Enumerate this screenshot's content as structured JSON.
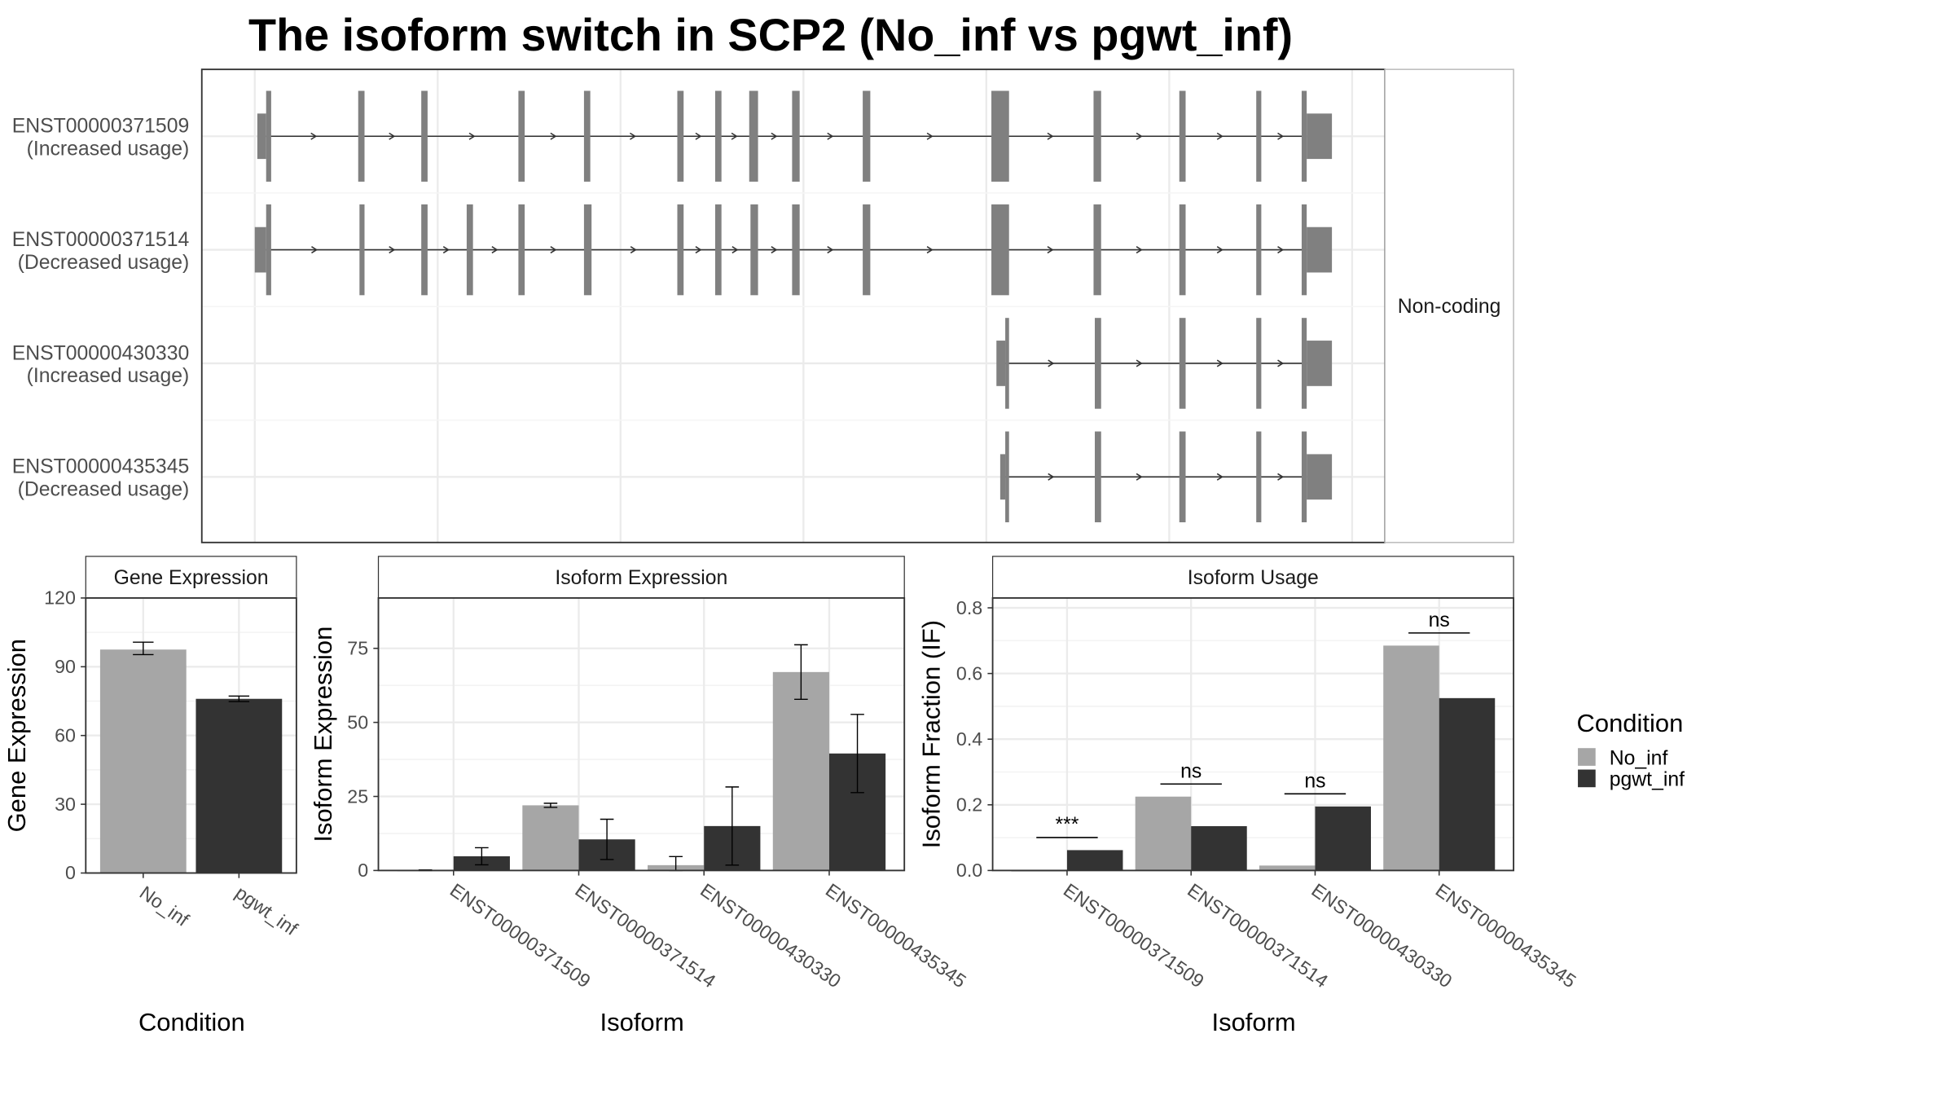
{
  "title": "The isoform switch in SCP2 (No_inf vs pgwt_inf)",
  "colors": {
    "No_inf": "#a6a6a6",
    "pgwt_inf": "#333333",
    "exon": "#808080",
    "grid": "#ebebeb"
  },
  "legend": {
    "title": "Condition",
    "items": [
      "No_inf",
      "pgwt_inf"
    ]
  },
  "structure": {
    "strip_label": "Non-coding",
    "transcripts": [
      {
        "id": "ENST00000371509",
        "usage": "(Increased usage)"
      },
      {
        "id": "ENST00000371514",
        "usage": "(Decreased usage)"
      },
      {
        "id": "ENST00000430330",
        "usage": "(Increased usage)"
      },
      {
        "id": "ENST00000435345",
        "usage": "(Decreased usage)"
      }
    ]
  },
  "chart_data": [
    {
      "type": "bar",
      "panel": "Gene Expression",
      "xlabel": "Condition",
      "ylabel": "Gene Expression",
      "categories": [
        "No_inf",
        "pgwt_inf"
      ],
      "values": [
        97.5,
        76.0
      ],
      "error": [
        [
          95.3,
          100.7
        ],
        [
          74.8,
          77.2
        ]
      ],
      "ylim": [
        0,
        120
      ],
      "yticks": [
        0,
        30,
        60,
        90,
        120
      ]
    },
    {
      "type": "bar",
      "panel": "Isoform Expression",
      "xlabel": "Isoform",
      "ylabel": "Isoform Expression",
      "categories": [
        "ENST00000371509",
        "ENST00000371514",
        "ENST00000430330",
        "ENST00000435345"
      ],
      "series": [
        {
          "name": "No_inf",
          "values": [
            0.1,
            22.0,
            1.8,
            67.0
          ],
          "error": [
            [
              0.0,
              0.2
            ],
            [
              21.3,
              22.7
            ],
            [
              0.0,
              4.7
            ],
            [
              57.8,
              76.2
            ]
          ]
        },
        {
          "name": "pgwt_inf",
          "values": [
            4.8,
            10.5,
            15.0,
            39.5
          ],
          "error": [
            [
              1.9,
              7.7
            ],
            [
              3.7,
              17.3
            ],
            [
              1.8,
              28.2
            ],
            [
              26.3,
              52.7
            ]
          ]
        }
      ],
      "ylim": [
        0,
        92
      ],
      "yticks": [
        0,
        25,
        50,
        75
      ]
    },
    {
      "type": "bar",
      "panel": "Isoform Usage",
      "xlabel": "Isoform",
      "ylabel": "Isoform Fraction (IF)",
      "categories": [
        "ENST00000371509",
        "ENST00000371514",
        "ENST00000430330",
        "ENST00000435345"
      ],
      "series": [
        {
          "name": "No_inf",
          "values": [
            0.0,
            0.225,
            0.015,
            0.685
          ]
        },
        {
          "name": "pgwt_inf",
          "values": [
            0.062,
            0.135,
            0.195,
            0.525
          ]
        }
      ],
      "significance": [
        "***",
        "ns",
        "ns",
        "ns"
      ],
      "ylim": [
        0,
        0.83
      ],
      "yticks": [
        0.0,
        0.2,
        0.4,
        0.6,
        0.8
      ],
      "ytick_labels": [
        "0.0",
        "0.2",
        "0.4",
        "0.6",
        "0.8"
      ]
    }
  ]
}
